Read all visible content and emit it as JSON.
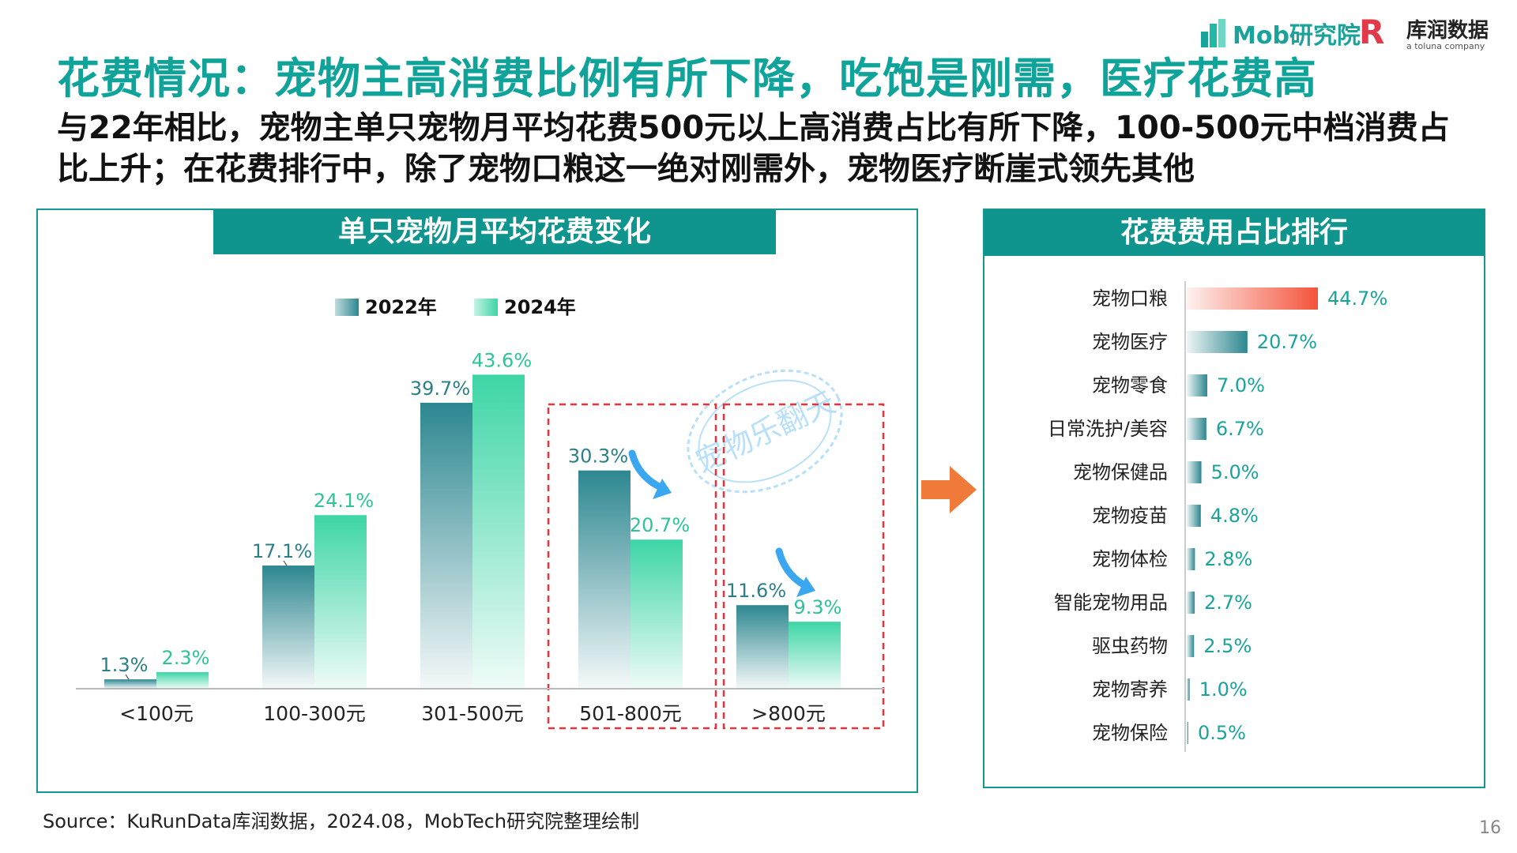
{
  "header": {
    "title": "花费情况：宠物主高消费比例有所下降，吃饱是刚需，医疗花费高",
    "subtitle": "与22年相比，宠物主单只宠物月平均花费500元以上高消费占比有所下降，100-500元中档消费占比上升；在花费排行中，除了宠物口粮这一绝对刚需外，宠物医疗断崖式领先其他"
  },
  "logos": {
    "mob": "Mob研究院",
    "kurun": "库润数据",
    "kurun_sub": "a toluna company"
  },
  "colors": {
    "teal": "#0f958d",
    "series_2022": "#2f8a92",
    "series_2024": "#3fd6a8",
    "highlight_bar": "#f4533a",
    "dashed_box": "#e8323c",
    "arrow_blue": "#3aa7f0",
    "arrow_orange": "#f07a3a"
  },
  "watermark": "宠物乐翻天",
  "chart_data": [
    {
      "type": "bar",
      "title": "单只宠物月平均花费变化",
      "categories": [
        "<100元",
        "100-300元",
        "301-500元",
        "501-800元",
        ">800元"
      ],
      "series": [
        {
          "name": "2022年",
          "values": [
            1.3,
            17.1,
            39.7,
            30.3,
            11.6
          ],
          "labels": [
            "1.3%",
            "17.1%",
            "39.7%",
            "30.3%",
            "11.6%"
          ]
        },
        {
          "name": "2024年",
          "values": [
            2.3,
            24.1,
            43.6,
            20.7,
            9.3
          ],
          "labels": [
            "2.3%",
            "24.1%",
            "43.6%",
            "20.7%",
            "9.3%"
          ]
        }
      ],
      "ylim": [
        0,
        50
      ],
      "unit": "%",
      "legend": "top",
      "grid": false,
      "highlighted_categories": [
        "501-800元",
        ">800元"
      ]
    },
    {
      "type": "bar",
      "orientation": "horizontal",
      "title": "花费费用占比排行",
      "categories": [
        "宠物口粮",
        "宠物医疗",
        "宠物零食",
        "日常洗护/美容",
        "宠物保健品",
        "宠物疫苗",
        "宠物体检",
        "智能宠物用品",
        "驱虫药物",
        "宠物寄养",
        "宠物保险"
      ],
      "values": [
        44.7,
        20.7,
        7.0,
        6.7,
        5.0,
        4.8,
        2.8,
        2.7,
        2.5,
        1.0,
        0.5
      ],
      "labels": [
        "44.7%",
        "20.7%",
        "7.0%",
        "6.7%",
        "5.0%",
        "4.8%",
        "2.8%",
        "2.7%",
        "2.5%",
        "1.0%",
        "0.5%"
      ],
      "unit": "%",
      "grid": false
    }
  ],
  "footer": {
    "source": "Source：KuRunData库润数据，2024.08，MobTech研究院整理绘制",
    "page": "16"
  }
}
